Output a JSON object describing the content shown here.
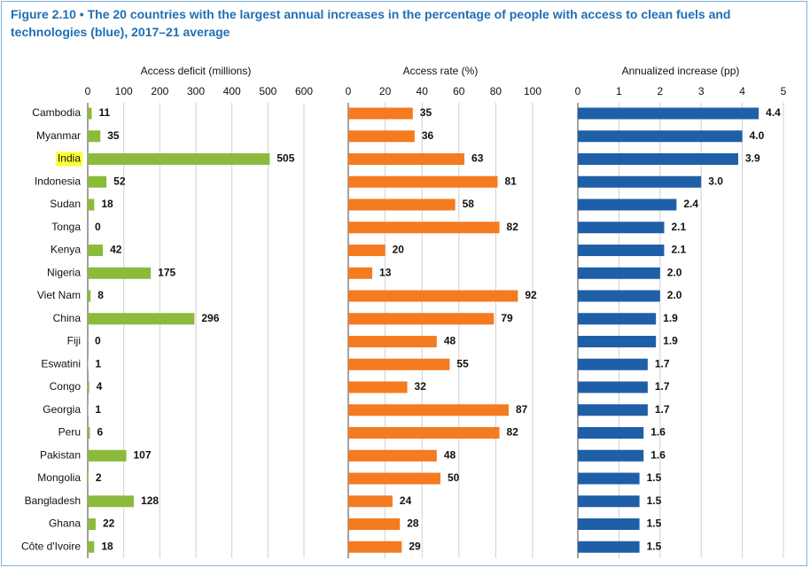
{
  "title": "Figure 2.10 • The 20 countries with the largest annual increases in the percentage of people with access to clean fuels and technologies (blue), 2017–21 average",
  "chart_data": [
    {
      "type": "bar",
      "orientation": "horizontal",
      "xlabel": "Access deficit (millions)",
      "color": "#8cba3c",
      "highlight_index": 2,
      "highlight_color": "#ffff33",
      "categories": [
        "Cambodia",
        "Myanmar",
        "India",
        "Indonesia",
        "Sudan",
        "Tonga",
        "Kenya",
        "Nigeria",
        "Viet Nam",
        "China",
        "Fiji",
        "Eswatini",
        "Congo",
        "Georgia",
        "Peru",
        "Pakistan",
        "Mongolia",
        "Bangladesh",
        "Ghana",
        "Côte d'Ivoire"
      ],
      "values": [
        11,
        35,
        505,
        52,
        18,
        0,
        42,
        175,
        8,
        296,
        0,
        1,
        4,
        1,
        6,
        107,
        2,
        128,
        22,
        18
      ],
      "xlim": [
        0,
        600
      ],
      "xticks": [
        0,
        100,
        200,
        300,
        400,
        500,
        600
      ],
      "grid": true
    },
    {
      "type": "bar",
      "orientation": "horizontal",
      "xlabel": "Access rate (%)",
      "color": "#f47b20",
      "values": [
        35,
        36,
        63,
        81,
        58,
        82,
        20,
        13,
        92,
        79,
        48,
        55,
        32,
        87,
        82,
        48,
        50,
        24,
        28,
        29
      ],
      "xlim": [
        0,
        100
      ],
      "xticks": [
        0,
        20,
        40,
        60,
        80,
        100
      ],
      "grid": true
    },
    {
      "type": "bar",
      "orientation": "horizontal",
      "xlabel": "Annualized increase (pp)",
      "color": "#1f5fa8",
      "values": [
        4.4,
        4.0,
        3.9,
        3.0,
        2.4,
        2.1,
        2.1,
        2.0,
        2.0,
        1.9,
        1.9,
        1.7,
        1.7,
        1.7,
        1.6,
        1.6,
        1.5,
        1.5,
        1.5,
        1.5
      ],
      "value_labels": [
        "4.4",
        "4.0",
        "3.9",
        "3.0",
        "2.4",
        "2.1",
        "2.1",
        "2.0",
        "2.0",
        "1.9",
        "1.9",
        "1.7",
        "1.7",
        "1.7",
        "1.6",
        "1.6",
        "1.5",
        "1.5",
        "1.5",
        "1.5"
      ],
      "xlim": [
        0,
        5
      ],
      "xticks": [
        0,
        1,
        2,
        3,
        4,
        5
      ],
      "grid": true
    }
  ]
}
